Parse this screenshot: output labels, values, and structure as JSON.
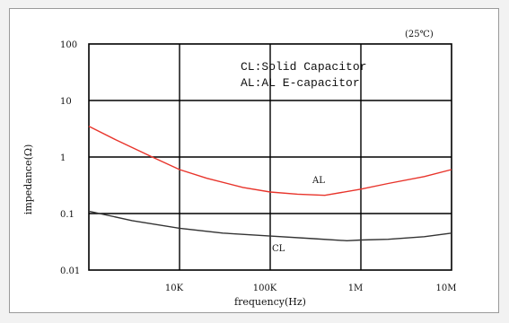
{
  "chart_data": {
    "type": "line",
    "title": "",
    "annotation": "(25℃)",
    "xlabel": "frequency(Hz)",
    "ylabel": "impedance(Ω)",
    "x_scale": "log",
    "y_scale": "log",
    "xlim": [
      1000,
      10000000
    ],
    "ylim": [
      0.01,
      100
    ],
    "grid": true,
    "x_ticks": [
      {
        "value": 10000,
        "label": "10K"
      },
      {
        "value": 100000,
        "label": "100K"
      },
      {
        "value": 1000000,
        "label": "1M"
      },
      {
        "value": 10000000,
        "label": "10M"
      }
    ],
    "y_ticks": [
      {
        "value": 100,
        "label": "100"
      },
      {
        "value": 10,
        "label": "10"
      },
      {
        "value": 1,
        "label": "1"
      },
      {
        "value": 0.1,
        "label": "0.1"
      },
      {
        "value": 0.01,
        "label": "0.01"
      }
    ],
    "legend_lines": [
      "CL:Solid Capacitor",
      "AL:AL E-capacitor"
    ],
    "series": [
      {
        "name": "AL",
        "color": "#e8342b",
        "x": [
          1000,
          2000,
          5000,
          10000,
          20000,
          50000,
          100000,
          200000,
          400000,
          1000000,
          2000000,
          5000000,
          10000000
        ],
        "y": [
          3.5,
          2.0,
          1.0,
          0.6,
          0.42,
          0.29,
          0.24,
          0.22,
          0.21,
          0.27,
          0.34,
          0.45,
          0.6
        ]
      },
      {
        "name": "CL",
        "color": "#333333",
        "x": [
          1000,
          3000,
          10000,
          30000,
          100000,
          300000,
          700000,
          1000000,
          2000000,
          5000000,
          10000000
        ],
        "y": [
          0.11,
          0.075,
          0.055,
          0.045,
          0.04,
          0.036,
          0.033,
          0.034,
          0.035,
          0.039,
          0.045
        ]
      }
    ]
  }
}
